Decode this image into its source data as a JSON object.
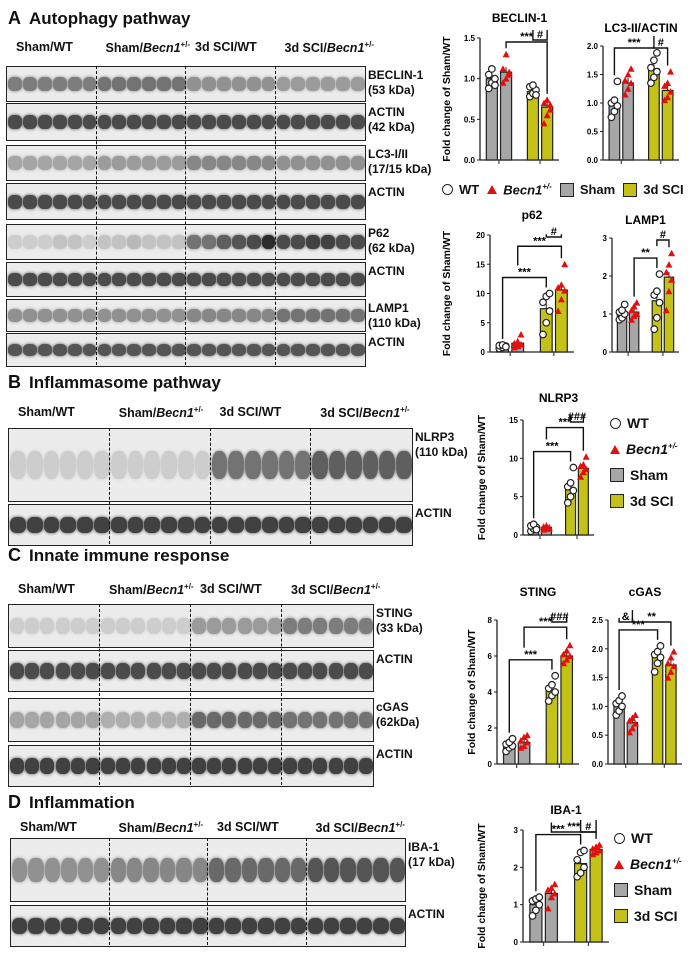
{
  "colors": {
    "sham": "#a6a6a6",
    "sci": "#c5c217",
    "becn": "#e01010"
  },
  "groups": [
    "Sham/WT",
    "Sham/",
    "3d SCI/WT",
    "3d SCI/"
  ],
  "becn_text": "Becn1",
  "becn_sup": "+/-",
  "legend": {
    "wt": "WT",
    "becn": "Becn1",
    "becn_sup": "+/-",
    "sham": "Sham",
    "sci": "3d SCI"
  },
  "panels": {
    "A": {
      "letter": "A",
      "title": "Autophagy pathway",
      "blots": [
        {
          "name": "BECLIN-1",
          "kda": "(53 kDa)",
          "lanes": [
            0.55,
            0.55,
            0.55,
            0.55,
            0.55,
            0.55,
            0.6,
            0.6,
            0.6,
            0.6,
            0.6,
            0.6,
            0.45,
            0.45,
            0.45,
            0.45,
            0.45,
            0.45,
            0.4,
            0.4,
            0.4,
            0.4,
            0.4,
            0.4
          ]
        },
        {
          "name": "ACTIN",
          "kda": "(42 kDa)",
          "lanes": [
            0.8,
            0.8,
            0.8,
            0.8,
            0.8,
            0.8,
            0.8,
            0.8,
            0.8,
            0.8,
            0.8,
            0.8,
            0.8,
            0.8,
            0.8,
            0.8,
            0.8,
            0.8,
            0.8,
            0.8,
            0.8,
            0.8,
            0.8,
            0.8
          ]
        },
        {
          "name": "LC3-I/II",
          "kda": "(17/15 kDa)",
          "lanes": [
            0.35,
            0.35,
            0.35,
            0.35,
            0.35,
            0.35,
            0.4,
            0.4,
            0.4,
            0.4,
            0.4,
            0.4,
            0.5,
            0.5,
            0.5,
            0.5,
            0.5,
            0.5,
            0.45,
            0.45,
            0.45,
            0.45,
            0.45,
            0.45
          ]
        },
        {
          "name": "ACTIN",
          "kda": "",
          "lanes": [
            0.8,
            0.8,
            0.8,
            0.8,
            0.8,
            0.8,
            0.8,
            0.8,
            0.8,
            0.8,
            0.8,
            0.8,
            0.8,
            0.8,
            0.8,
            0.8,
            0.8,
            0.8,
            0.8,
            0.8,
            0.8,
            0.8,
            0.8,
            0.8
          ]
        },
        {
          "name": "P62",
          "kda": "(62 kDa)",
          "lanes": [
            0.15,
            0.15,
            0.15,
            0.2,
            0.2,
            0.15,
            0.2,
            0.2,
            0.25,
            0.2,
            0.2,
            0.2,
            0.6,
            0.6,
            0.7,
            0.75,
            0.8,
            0.95,
            0.8,
            0.8,
            0.85,
            0.85,
            0.8,
            0.8
          ]
        },
        {
          "name": "ACTIN",
          "kda": "",
          "lanes": [
            0.8,
            0.8,
            0.8,
            0.8,
            0.8,
            0.8,
            0.8,
            0.8,
            0.8,
            0.8,
            0.8,
            0.8,
            0.8,
            0.8,
            0.8,
            0.8,
            0.8,
            0.8,
            0.8,
            0.8,
            0.8,
            0.8,
            0.8,
            0.8
          ]
        },
        {
          "name": "LAMP1",
          "kda": "(110 kDa)",
          "lanes": [
            0.45,
            0.45,
            0.45,
            0.45,
            0.45,
            0.45,
            0.45,
            0.45,
            0.45,
            0.45,
            0.45,
            0.45,
            0.5,
            0.5,
            0.5,
            0.5,
            0.5,
            0.5,
            0.6,
            0.6,
            0.6,
            0.6,
            0.6,
            0.6
          ]
        },
        {
          "name": "ACTIN",
          "kda": "",
          "lanes": [
            0.75,
            0.75,
            0.75,
            0.75,
            0.75,
            0.75,
            0.75,
            0.75,
            0.75,
            0.75,
            0.75,
            0.75,
            0.75,
            0.75,
            0.75,
            0.75,
            0.75,
            0.75,
            0.75,
            0.75,
            0.75,
            0.75,
            0.75,
            0.75
          ]
        }
      ]
    },
    "B": {
      "letter": "B",
      "title": "Inflammasome  pathway",
      "blots": [
        {
          "name": "NLRP3",
          "kda": "(110 kDa)",
          "lanes": [
            0.15,
            0.15,
            0.15,
            0.15,
            0.15,
            0.15,
            0.15,
            0.15,
            0.15,
            0.15,
            0.15,
            0.15,
            0.6,
            0.6,
            0.6,
            0.6,
            0.6,
            0.6,
            0.7,
            0.7,
            0.7,
            0.7,
            0.7,
            0.7
          ]
        },
        {
          "name": "ACTIN",
          "kda": "",
          "lanes": [
            0.85,
            0.85,
            0.85,
            0.85,
            0.85,
            0.85,
            0.85,
            0.85,
            0.85,
            0.85,
            0.85,
            0.85,
            0.85,
            0.85,
            0.85,
            0.85,
            0.85,
            0.85,
            0.85,
            0.85,
            0.85,
            0.85,
            0.85,
            0.85
          ]
        }
      ]
    },
    "C": {
      "letter": "C",
      "title": "Innate immune response",
      "blots": [
        {
          "name": "STING",
          "kda": "(33 kDa)",
          "lanes": [
            0.15,
            0.15,
            0.15,
            0.15,
            0.15,
            0.15,
            0.15,
            0.15,
            0.15,
            0.15,
            0.15,
            0.15,
            0.4,
            0.4,
            0.4,
            0.4,
            0.4,
            0.4,
            0.55,
            0.55,
            0.55,
            0.55,
            0.55,
            0.55
          ]
        },
        {
          "name": "ACTIN",
          "kda": "",
          "lanes": [
            0.8,
            0.8,
            0.8,
            0.8,
            0.8,
            0.8,
            0.8,
            0.8,
            0.8,
            0.8,
            0.8,
            0.8,
            0.8,
            0.8,
            0.8,
            0.8,
            0.8,
            0.8,
            0.8,
            0.8,
            0.8,
            0.8,
            0.8,
            0.8
          ]
        },
        {
          "name": "cGAS",
          "kda": "(62kDa)",
          "lanes": [
            0.35,
            0.35,
            0.35,
            0.35,
            0.35,
            0.35,
            0.3,
            0.3,
            0.3,
            0.3,
            0.3,
            0.3,
            0.65,
            0.65,
            0.65,
            0.65,
            0.65,
            0.65,
            0.6,
            0.6,
            0.6,
            0.6,
            0.6,
            0.6
          ]
        },
        {
          "name": "ACTIN",
          "kda": "",
          "lanes": [
            0.85,
            0.85,
            0.85,
            0.85,
            0.85,
            0.85,
            0.85,
            0.85,
            0.85,
            0.85,
            0.85,
            0.85,
            0.85,
            0.85,
            0.85,
            0.85,
            0.85,
            0.85,
            0.85,
            0.85,
            0.85,
            0.85,
            0.85,
            0.85
          ]
        }
      ]
    },
    "D": {
      "letter": "D",
      "title": "Inflammation",
      "blots": [
        {
          "name": "IBA-1",
          "kda": "(17 kDa)",
          "lanes": [
            0.45,
            0.45,
            0.45,
            0.45,
            0.45,
            0.45,
            0.5,
            0.5,
            0.5,
            0.5,
            0.5,
            0.5,
            0.65,
            0.65,
            0.65,
            0.65,
            0.65,
            0.65,
            0.75,
            0.75,
            0.75,
            0.75,
            0.75,
            0.75
          ]
        },
        {
          "name": "ACTIN",
          "kda": "",
          "lanes": [
            0.85,
            0.85,
            0.85,
            0.85,
            0.85,
            0.85,
            0.85,
            0.85,
            0.85,
            0.85,
            0.85,
            0.85,
            0.85,
            0.85,
            0.85,
            0.85,
            0.85,
            0.85,
            0.85,
            0.85,
            0.85,
            0.85,
            0.85,
            0.85
          ]
        }
      ]
    }
  },
  "chart_data": [
    {
      "id": "beclin",
      "type": "bar",
      "title": "BECLIN-1",
      "ylabel": "Fold change of Sham/WT",
      "ylim": [
        0,
        1.5
      ],
      "yticks": [
        "0.0",
        "0.5",
        "1.0",
        "1.5"
      ],
      "categories": [
        "Sham WT",
        "Sham Becn1+/-",
        "3d SCI WT",
        "3d SCI Becn1+/-"
      ],
      "values": [
        1.0,
        1.08,
        0.84,
        0.65
      ],
      "points": [
        [
          0.88,
          0.95,
          1.0,
          1.05,
          1.12,
          0.92
        ],
        [
          0.95,
          1.0,
          1.08,
          1.12,
          1.3,
          1.05
        ],
        [
          0.78,
          0.82,
          0.86,
          0.9,
          0.92,
          0.8
        ],
        [
          0.45,
          0.55,
          0.62,
          0.7,
          0.74,
          0.68
        ]
      ],
      "sig": [
        {
          "a": 1,
          "b": 3,
          "label": "***"
        },
        {
          "a": 2,
          "b": 3,
          "label": "#"
        }
      ]
    },
    {
      "id": "lc3",
      "type": "bar",
      "title": "LC3-II/ACTIN",
      "ylabel": "",
      "ylim": [
        0,
        2.0
      ],
      "yticks": [
        "0.0",
        "0.5",
        "1.0",
        "1.5",
        "2.0"
      ],
      "categories": [
        "Sham WT",
        "Sham Becn1+/-",
        "3d SCI WT",
        "3d SCI Becn1+/-"
      ],
      "values": [
        0.98,
        1.35,
        1.6,
        1.22
      ],
      "points": [
        [
          0.75,
          0.85,
          0.95,
          1.0,
          1.05,
          1.38
        ],
        [
          1.15,
          1.25,
          1.35,
          1.4,
          1.5,
          1.6
        ],
        [
          1.35,
          1.45,
          1.55,
          1.62,
          1.75,
          1.88
        ],
        [
          1.05,
          1.1,
          1.2,
          1.3,
          1.35,
          1.55
        ]
      ],
      "sig": [
        {
          "a": 0,
          "b": 2,
          "label": "***"
        },
        {
          "a": 2,
          "b": 3,
          "label": "#"
        }
      ]
    },
    {
      "id": "p62",
      "type": "bar",
      "title": "p62",
      "ylabel": "Fold change of Sham/WT",
      "ylim": [
        0,
        20
      ],
      "yticks": [
        "0",
        "5",
        "10",
        "15",
        "20"
      ],
      "categories": [
        "Sham WT",
        "Sham Becn1+/-",
        "3d SCI WT",
        "3d SCI Becn1+/-"
      ],
      "values": [
        1.0,
        1.5,
        7.4,
        10.6
      ],
      "points": [
        [
          0.6,
          0.8,
          1.0,
          1.1,
          1.2,
          0.9
        ],
        [
          0.8,
          1.0,
          1.3,
          1.5,
          1.8,
          3.0
        ],
        [
          3.0,
          5.0,
          7.0,
          8.5,
          9.5,
          10.0
        ],
        [
          7.0,
          9.0,
          10.5,
          11.0,
          11.5,
          15.0
        ]
      ],
      "sig": [
        {
          "a": 0,
          "b": 2,
          "label": "***"
        },
        {
          "a": 1,
          "b": 3,
          "label": "***"
        },
        {
          "a": 2,
          "b": 3,
          "label": "#"
        }
      ]
    },
    {
      "id": "lamp1",
      "type": "bar",
      "title": "LAMP1",
      "ylabel": "",
      "ylim": [
        0,
        3
      ],
      "yticks": [
        "0",
        "1",
        "2",
        "3"
      ],
      "categories": [
        "Sham WT",
        "Sham Becn1+/-",
        "3d SCI WT",
        "3d SCI Becn1+/-"
      ],
      "values": [
        1.0,
        1.05,
        1.35,
        1.97
      ],
      "points": [
        [
          0.85,
          0.9,
          1.0,
          1.05,
          1.1,
          1.25
        ],
        [
          0.85,
          0.95,
          1.0,
          1.1,
          1.2,
          1.3
        ],
        [
          0.6,
          0.9,
          1.3,
          1.5,
          1.6,
          2.05
        ],
        [
          1.1,
          1.6,
          1.9,
          2.1,
          2.3,
          2.6
        ]
      ],
      "sig": [
        {
          "a": 1,
          "b": 2,
          "label": "**"
        },
        {
          "a": 2,
          "b": 3,
          "label": "#"
        }
      ]
    },
    {
      "id": "nlrp3",
      "type": "bar",
      "title": "NLRP3",
      "ylabel": "Fold change of Sham/WT",
      "ylim": [
        0,
        15
      ],
      "yticks": [
        "0",
        "5",
        "10",
        "15"
      ],
      "categories": [
        "Sham WT",
        "Sham Becn1+/-",
        "3d SCI WT",
        "3d SCI Becn1+/-"
      ],
      "values": [
        1.0,
        1.0,
        6.0,
        8.7
      ],
      "points": [
        [
          0.5,
          0.8,
          1.0,
          1.2,
          1.4,
          0.7
        ],
        [
          0.7,
          0.9,
          1.0,
          1.1,
          1.2,
          0.8
        ],
        [
          4.2,
          5.0,
          5.8,
          6.3,
          6.8,
          8.8
        ],
        [
          7.6,
          8.2,
          8.6,
          9.0,
          9.2,
          10.2
        ]
      ],
      "sig": [
        {
          "a": 0,
          "b": 2,
          "label": "***"
        },
        {
          "a": 1,
          "b": 3,
          "label": "***"
        },
        {
          "a": 2,
          "b": 3,
          "label": "###"
        }
      ]
    },
    {
      "id": "sting",
      "type": "bar",
      "title": "STING",
      "ylabel": "Fold change of Sham/WT",
      "ylim": [
        0,
        8
      ],
      "yticks": [
        "0",
        "2",
        "4",
        "6",
        "8"
      ],
      "categories": [
        "Sham WT",
        "Sham Becn1+/-",
        "3d SCI WT",
        "3d SCI Becn1+/-"
      ],
      "values": [
        1.0,
        1.2,
        4.1,
        6.0
      ],
      "points": [
        [
          0.7,
          0.9,
          1.0,
          1.1,
          1.2,
          1.4
        ],
        [
          0.9,
          1.0,
          1.2,
          1.3,
          1.5,
          1.6
        ],
        [
          3.5,
          3.8,
          4.0,
          4.2,
          4.4,
          4.9
        ],
        [
          5.6,
          5.8,
          6.0,
          6.1,
          6.3,
          6.6
        ]
      ],
      "sig": [
        {
          "a": 0,
          "b": 2,
          "label": "***"
        },
        {
          "a": 1,
          "b": 3,
          "label": "***"
        },
        {
          "a": 2,
          "b": 3,
          "label": "###"
        }
      ]
    },
    {
      "id": "cgas",
      "type": "bar",
      "title": "cGAS",
      "ylabel": "",
      "ylim": [
        0,
        2.5
      ],
      "yticks": [
        "0.0",
        "0.5",
        "1.0",
        "1.5",
        "2.0",
        "2.5"
      ],
      "categories": [
        "Sham WT",
        "Sham Becn1+/-",
        "3d SCI WT",
        "3d SCI Becn1+/-"
      ],
      "values": [
        1.0,
        0.72,
        1.85,
        1.72
      ],
      "points": [
        [
          0.85,
          0.92,
          1.0,
          1.05,
          1.1,
          1.18
        ],
        [
          0.55,
          0.62,
          0.7,
          0.75,
          0.8,
          0.85
        ],
        [
          1.6,
          1.75,
          1.85,
          1.9,
          1.95,
          2.05
        ],
        [
          1.5,
          1.6,
          1.7,
          1.75,
          1.85,
          1.95
        ]
      ],
      "sig": [
        {
          "a": 0,
          "b": 2,
          "label": "***"
        },
        {
          "a": 0,
          "b": 1,
          "label": "&"
        },
        {
          "a": 1,
          "b": 3,
          "label": "**"
        }
      ]
    },
    {
      "id": "iba1",
      "type": "bar",
      "title": "IBA-1",
      "ylabel": "Fold change of Sham/WT",
      "ylim": [
        0,
        3
      ],
      "yticks": [
        "0",
        "1",
        "2",
        "3"
      ],
      "categories": [
        "Sham WT",
        "Sham Becn1+/-",
        "3d SCI WT",
        "3d SCI Becn1+/-"
      ],
      "values": [
        1.0,
        1.3,
        2.1,
        2.48
      ],
      "points": [
        [
          0.7,
          0.85,
          1.0,
          1.1,
          1.15,
          1.2
        ],
        [
          0.9,
          1.2,
          1.3,
          1.4,
          1.45,
          1.55
        ],
        [
          1.75,
          1.85,
          2.0,
          2.2,
          2.4,
          2.45
        ],
        [
          2.35,
          2.4,
          2.45,
          2.5,
          2.55,
          2.6
        ]
      ],
      "sig": [
        {
          "a": 0,
          "b": 2,
          "label": "***"
        },
        {
          "a": 1,
          "b": 3,
          "label": "***"
        },
        {
          "a": 2,
          "b": 3,
          "label": "#"
        }
      ]
    }
  ]
}
